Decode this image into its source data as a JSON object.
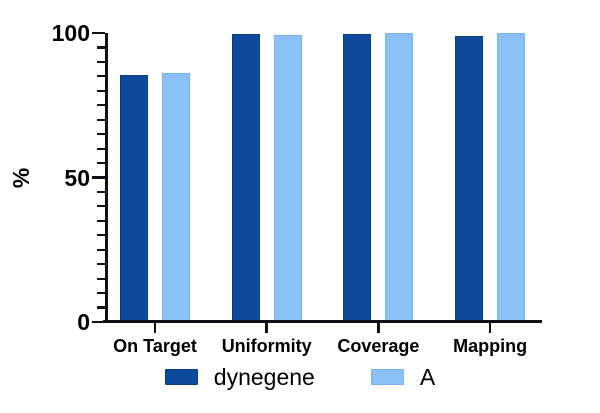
{
  "chart_data": {
    "type": "bar",
    "title": "",
    "categories": [
      "On Target",
      "Uniformity",
      "Coverage",
      "Mapping"
    ],
    "series": [
      {
        "name": "dynegene",
        "color": "#0d4a9c",
        "border_color": "#093c82",
        "values": [
          85.5,
          99.8,
          99.8,
          99.0
        ]
      },
      {
        "name": "A",
        "color": "#8cc1f8",
        "border_color": "#79b2f0",
        "values": [
          86.0,
          99.4,
          100.0,
          99.9
        ]
      }
    ],
    "xlabel": "",
    "ylabel": "%",
    "ylim": [
      0,
      100
    ],
    "yticks": [
      0,
      50,
      100
    ],
    "minor_tick_step": 5,
    "grid": false,
    "legend_position": "bottom",
    "axis_color": "#101018",
    "background_color": "#ffffff"
  }
}
